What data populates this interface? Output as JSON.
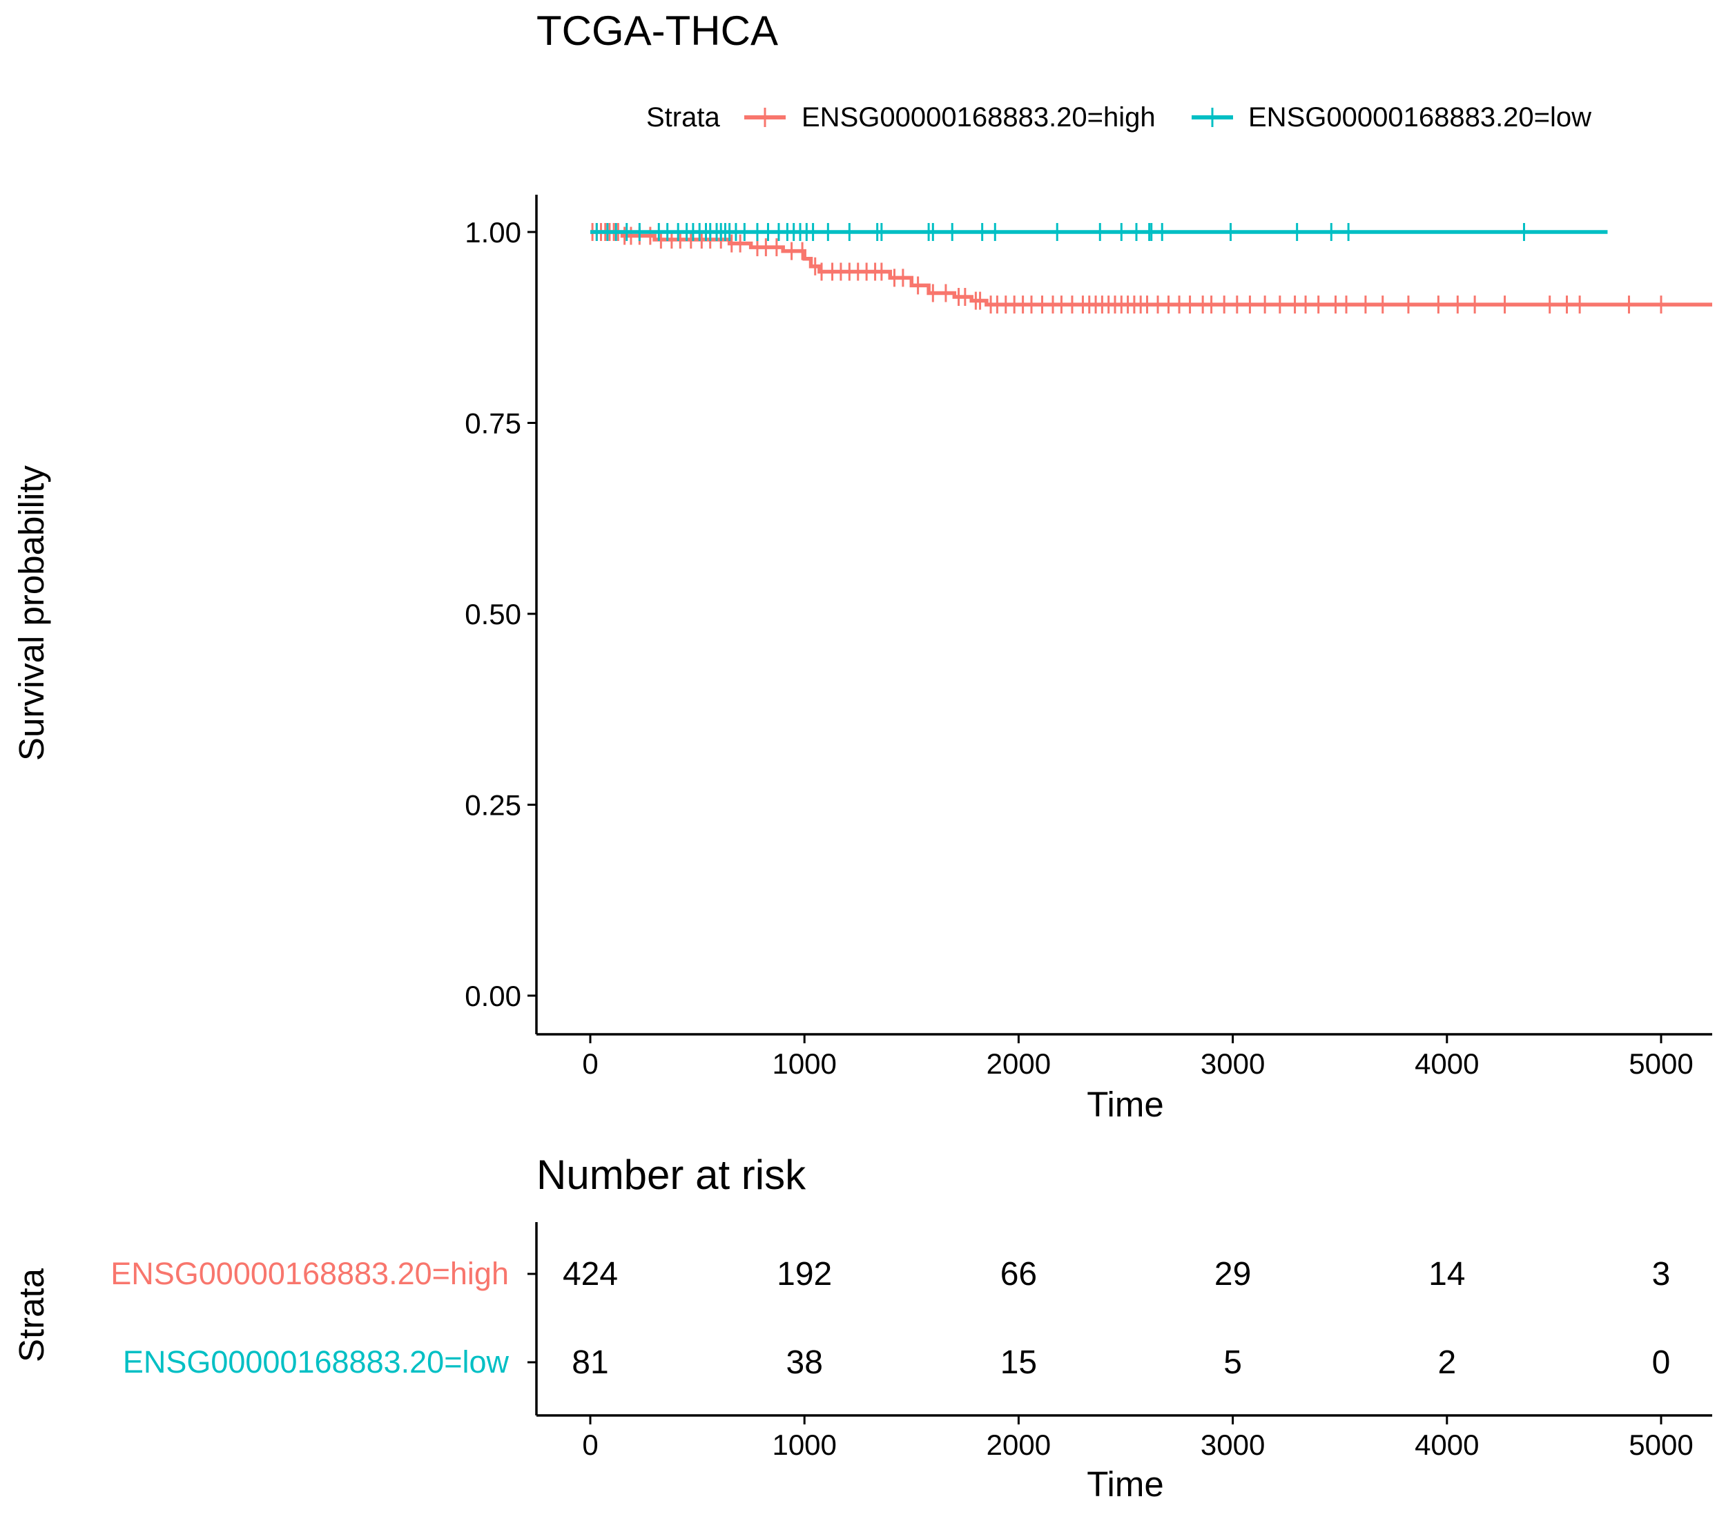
{
  "chart_data": [
    {
      "type": "line",
      "subtype": "kaplan-meier",
      "title": "TCGA-THCA",
      "xlabel": "Time",
      "ylabel": "Survival probability",
      "xlim": [
        -250,
        5250
      ],
      "ylim": [
        -0.05,
        1.05
      ],
      "x_ticks": [
        0,
        1000,
        2000,
        3000,
        4000,
        5000
      ],
      "y_ticks": [
        0.0,
        0.25,
        0.5,
        0.75,
        1.0
      ],
      "y_tick_labels": [
        "0.00",
        "0.25",
        "0.50",
        "0.75",
        "1.00"
      ],
      "grid": false,
      "legend": {
        "position": "top",
        "title": "Strata",
        "entries": [
          "ENSG00000168883.20=high",
          "ENSG00000168883.20=low"
        ]
      },
      "series": [
        {
          "name": "ENSG00000168883.20=high",
          "color": "#F8766D",
          "steps": [
            {
              "x": 0,
              "y": 1.0
            },
            {
              "x": 150,
              "y": 0.995
            },
            {
              "x": 300,
              "y": 0.99
            },
            {
              "x": 650,
              "y": 0.985
            },
            {
              "x": 750,
              "y": 0.98
            },
            {
              "x": 900,
              "y": 0.975
            },
            {
              "x": 1000,
              "y": 0.965
            },
            {
              "x": 1030,
              "y": 0.955
            },
            {
              "x": 1070,
              "y": 0.948
            },
            {
              "x": 1400,
              "y": 0.94
            },
            {
              "x": 1500,
              "y": 0.93
            },
            {
              "x": 1580,
              "y": 0.92
            },
            {
              "x": 1700,
              "y": 0.915
            },
            {
              "x": 1780,
              "y": 0.91
            },
            {
              "x": 1850,
              "y": 0.905
            }
          ],
          "end_x": 5250,
          "censor_times": [
            10,
            30,
            50,
            70,
            90,
            110,
            130,
            160,
            190,
            230,
            280,
            330,
            380,
            420,
            470,
            520,
            560,
            610,
            660,
            700,
            780,
            820,
            870,
            940,
            990,
            1050,
            1080,
            1130,
            1170,
            1210,
            1250,
            1290,
            1330,
            1360,
            1420,
            1460,
            1530,
            1600,
            1660,
            1720,
            1750,
            1800,
            1820,
            1870,
            1900,
            1940,
            1980,
            2020,
            2060,
            2110,
            2160,
            2200,
            2250,
            2300,
            2330,
            2360,
            2390,
            2420,
            2450,
            2480,
            2510,
            2540,
            2570,
            2600,
            2650,
            2700,
            2750,
            2800,
            2860,
            2900,
            2960,
            3020,
            3080,
            3150,
            3220,
            3290,
            3340,
            3400,
            3480,
            3530,
            3620,
            3700,
            3820,
            3960,
            4050,
            4130,
            4270,
            4480,
            4560,
            4620,
            4850,
            5000
          ]
        },
        {
          "name": "ENSG00000168883.20=low",
          "color": "#00BFC4",
          "steps": [
            {
              "x": 0,
              "y": 1.0
            }
          ],
          "end_x": 4750,
          "censor_times": [
            30,
            80,
            120,
            170,
            230,
            320,
            360,
            410,
            450,
            480,
            510,
            540,
            560,
            590,
            610,
            630,
            650,
            680,
            720,
            780,
            830,
            880,
            920,
            950,
            980,
            1010,
            1040,
            1110,
            1210,
            1340,
            1360,
            1580,
            1600,
            1690,
            1830,
            1890,
            2180,
            2380,
            2480,
            2550,
            2610,
            2620,
            2670,
            2990,
            3300,
            3460,
            3540,
            4360
          ]
        }
      ]
    },
    {
      "type": "table",
      "title": "Number at risk",
      "xlabel": "Time",
      "ylabel": "Strata",
      "x_ticks": [
        0,
        1000,
        2000,
        3000,
        4000,
        5000
      ],
      "rows": [
        {
          "name": "ENSG00000168883.20=high",
          "color": "#F8766D",
          "values": [
            424,
            192,
            66,
            29,
            14,
            3
          ]
        },
        {
          "name": "ENSG00000168883.20=low",
          "color": "#00BFC4",
          "values": [
            81,
            38,
            15,
            5,
            2,
            0
          ]
        }
      ]
    }
  ]
}
